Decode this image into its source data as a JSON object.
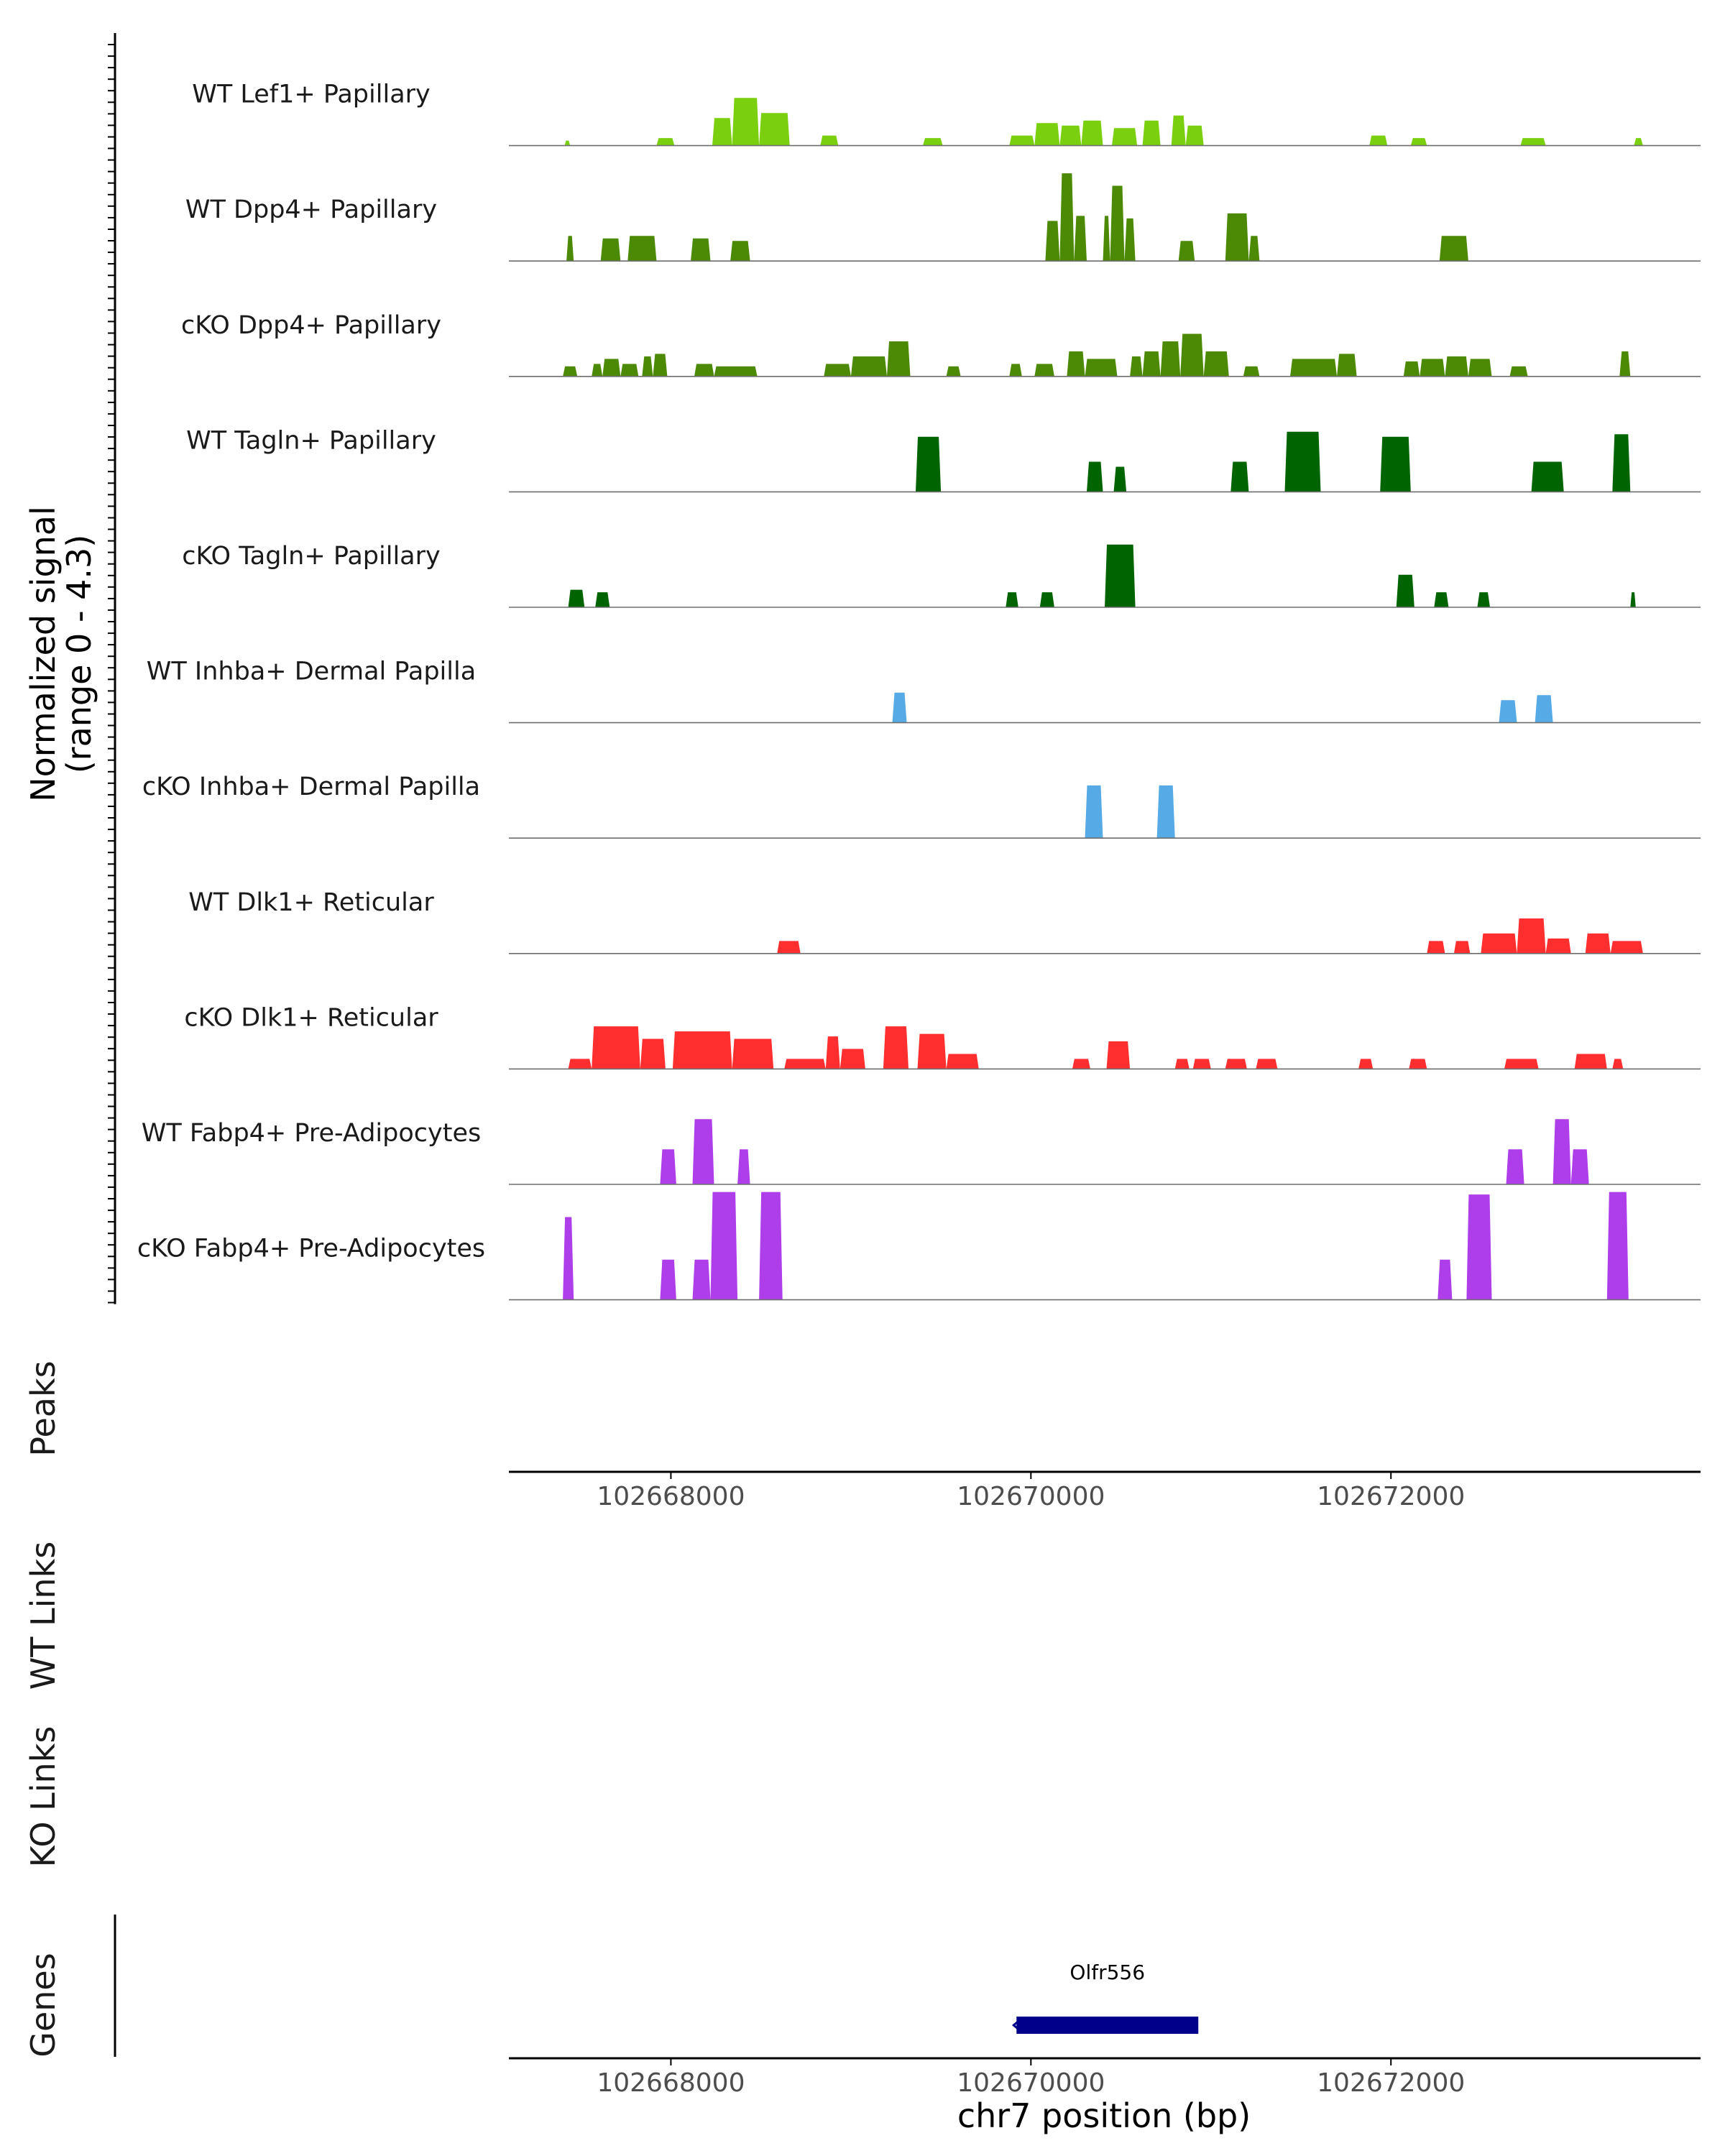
{
  "chart_data": {
    "type": "area",
    "chromosome": "chr7",
    "region": [
      102667100,
      102673720
    ],
    "ylabel": "Normalized signal",
    "ylabel_range": "(range 0 - 4.3)",
    "ylim": [
      0,
      4.3
    ],
    "xlabel": "chr7 position (bp)",
    "xticks": [
      102668000,
      102670000,
      102672000
    ],
    "tracks": [
      {
        "name": "WT Lef1+ Papillary",
        "color": "#7ACF0F",
        "segments": [
          [
            102667410,
            102667440,
            0.2
          ],
          [
            102667920,
            102668020,
            0.3
          ],
          [
            102668230,
            102668340,
            1.1
          ],
          [
            102668340,
            102668490,
            1.9
          ],
          [
            102668490,
            102668660,
            1.3
          ],
          [
            102668830,
            102668930,
            0.4
          ],
          [
            102669400,
            102669510,
            0.3
          ],
          [
            102669880,
            102670020,
            0.4
          ],
          [
            102670020,
            102670160,
            0.9
          ],
          [
            102670160,
            102670280,
            0.8
          ],
          [
            102670280,
            102670400,
            1.0
          ],
          [
            102670450,
            102670590,
            0.7
          ],
          [
            102670620,
            102670720,
            1.0
          ],
          [
            102670780,
            102670860,
            1.2
          ],
          [
            102670860,
            102670960,
            0.8
          ],
          [
            102671880,
            102671980,
            0.4
          ],
          [
            102672110,
            102672200,
            0.3
          ],
          [
            102672720,
            102672860,
            0.3
          ],
          [
            102673350,
            102673400,
            0.3
          ]
        ]
      },
      {
        "name": "WT Dpp4+ Papillary",
        "color": "#4C8A05",
        "segments": [
          [
            102667420,
            102667460,
            1.0
          ],
          [
            102667610,
            102667720,
            0.9
          ],
          [
            102667760,
            102667920,
            1.0
          ],
          [
            102668110,
            102668220,
            0.9
          ],
          [
            102668330,
            102668440,
            0.8
          ],
          [
            102670080,
            102670160,
            1.6
          ],
          [
            102670160,
            102670240,
            3.5
          ],
          [
            102670240,
            102670310,
            1.8
          ],
          [
            102670400,
            102670440,
            1.8
          ],
          [
            102670440,
            102670520,
            3.0
          ],
          [
            102670520,
            102670580,
            1.7
          ],
          [
            102670820,
            102670910,
            0.8
          ],
          [
            102671080,
            102671210,
            1.9
          ],
          [
            102671210,
            102671270,
            1.0
          ],
          [
            102672270,
            102672430,
            1.0
          ]
        ]
      },
      {
        "name": "cKO Dpp4+ Papillary",
        "color": "#4C8A05",
        "segments": [
          [
            102667400,
            102667480,
            0.4
          ],
          [
            102667560,
            102667620,
            0.5
          ],
          [
            102667620,
            102667720,
            0.7
          ],
          [
            102667720,
            102667820,
            0.5
          ],
          [
            102667840,
            102667900,
            0.8
          ],
          [
            102667900,
            102667980,
            0.9
          ],
          [
            102668130,
            102668240,
            0.5
          ],
          [
            102668240,
            102668480,
            0.4
          ],
          [
            102668850,
            102669000,
            0.5
          ],
          [
            102669000,
            102669200,
            0.8
          ],
          [
            102669200,
            102669330,
            1.4
          ],
          [
            102669530,
            102669610,
            0.4
          ],
          [
            102669880,
            102669950,
            0.5
          ],
          [
            102670020,
            102670130,
            0.5
          ],
          [
            102670200,
            102670300,
            1.0
          ],
          [
            102670300,
            102670480,
            0.7
          ],
          [
            102670550,
            102670620,
            0.8
          ],
          [
            102670620,
            102670720,
            1.0
          ],
          [
            102670720,
            102670830,
            1.4
          ],
          [
            102670830,
            102670960,
            1.7
          ],
          [
            102670960,
            102671100,
            1.0
          ],
          [
            102671180,
            102671270,
            0.4
          ],
          [
            102671440,
            102671700,
            0.7
          ],
          [
            102671700,
            102671810,
            0.9
          ],
          [
            102672070,
            102672160,
            0.6
          ],
          [
            102672160,
            102672300,
            0.7
          ],
          [
            102672300,
            102672430,
            0.8
          ],
          [
            102672430,
            102672560,
            0.7
          ],
          [
            102672660,
            102672760,
            0.4
          ],
          [
            102673270,
            102673330,
            1.0
          ]
        ]
      },
      {
        "name": "WT Tagln+ Papillary",
        "color": "#006400",
        "segments": [
          [
            102669360,
            102669500,
            2.2
          ],
          [
            102670310,
            102670400,
            1.2
          ],
          [
            102670460,
            102670530,
            1.0
          ],
          [
            102671110,
            102671210,
            1.2
          ],
          [
            102671410,
            102671610,
            2.4
          ],
          [
            102671940,
            102672110,
            2.2
          ],
          [
            102672780,
            102672960,
            1.2
          ],
          [
            102673230,
            102673330,
            2.3
          ]
        ]
      },
      {
        "name": "cKO Tagln+ Papillary",
        "color": "#006400",
        "segments": [
          [
            102667430,
            102667520,
            0.7
          ],
          [
            102667580,
            102667660,
            0.6
          ],
          [
            102669860,
            102669930,
            0.6
          ],
          [
            102670050,
            102670130,
            0.6
          ],
          [
            102670410,
            102670580,
            2.5
          ],
          [
            102672030,
            102672130,
            1.3
          ],
          [
            102672240,
            102672320,
            0.6
          ],
          [
            102672480,
            102672550,
            0.6
          ],
          [
            102673330,
            102673360,
            0.6
          ]
        ]
      },
      {
        "name": "WT Inhba+ Dermal Papilla",
        "color": "#56ABE6",
        "segments": [
          [
            102669230,
            102669310,
            1.2
          ],
          [
            102672600,
            102672700,
            0.9
          ],
          [
            102672800,
            102672900,
            1.1
          ]
        ]
      },
      {
        "name": "cKO Inhba+ Dermal Papilla",
        "color": "#56ABE6",
        "segments": [
          [
            102670300,
            102670400,
            2.1
          ],
          [
            102670700,
            102670800,
            2.1
          ]
        ]
      },
      {
        "name": "WT Dlk1+ Reticular",
        "color": "#FF2F2F",
        "segments": [
          [
            102668590,
            102668720,
            0.5
          ],
          [
            102672200,
            102672300,
            0.5
          ],
          [
            102672350,
            102672440,
            0.5
          ],
          [
            102672500,
            102672700,
            0.8
          ],
          [
            102672700,
            102672860,
            1.4
          ],
          [
            102672860,
            102673000,
            0.6
          ],
          [
            102673080,
            102673220,
            0.8
          ],
          [
            102673220,
            102673400,
            0.5
          ]
        ]
      },
      {
        "name": "cKO Dlk1+ Reticular",
        "color": "#FF2F2F",
        "segments": [
          [
            102667430,
            102667560,
            0.4
          ],
          [
            102667560,
            102667830,
            1.7
          ],
          [
            102667830,
            102667970,
            1.2
          ],
          [
            102668010,
            102668340,
            1.5
          ],
          [
            102668340,
            102668570,
            1.2
          ],
          [
            102668630,
            102668860,
            0.4
          ],
          [
            102668860,
            102668940,
            1.3
          ],
          [
            102668940,
            102669080,
            0.8
          ],
          [
            102669180,
            102669320,
            1.7
          ],
          [
            102669370,
            102669530,
            1.4
          ],
          [
            102669530,
            102669710,
            0.6
          ],
          [
            102670230,
            102670330,
            0.4
          ],
          [
            102670420,
            102670550,
            1.1
          ],
          [
            102670800,
            102670880,
            0.4
          ],
          [
            102670900,
            102671000,
            0.4
          ],
          [
            102671080,
            102671200,
            0.4
          ],
          [
            102671250,
            102671370,
            0.4
          ],
          [
            102671820,
            102671900,
            0.4
          ],
          [
            102672100,
            102672200,
            0.4
          ],
          [
            102672630,
            102672820,
            0.4
          ],
          [
            102673020,
            102673200,
            0.6
          ],
          [
            102673230,
            102673290,
            0.4
          ]
        ]
      },
      {
        "name": "WT Fabp4+ Pre-Adipocytes",
        "color": "#AE3EEA",
        "segments": [
          [
            102667940,
            102668030,
            1.4
          ],
          [
            102668120,
            102668240,
            2.6
          ],
          [
            102668370,
            102668440,
            1.4
          ],
          [
            102672640,
            102672740,
            1.4
          ],
          [
            102672900,
            102673000,
            2.6
          ],
          [
            102673000,
            102673100,
            1.4
          ]
        ]
      },
      {
        "name": "cKO Fabp4+ Pre-Adipocytes",
        "color": "#AE3EEA",
        "segments": [
          [
            102667400,
            102667460,
            3.3
          ],
          [
            102667940,
            102668030,
            1.6
          ],
          [
            102668120,
            102668220,
            1.6
          ],
          [
            102668220,
            102668370,
            4.3
          ],
          [
            102668490,
            102668620,
            4.3
          ],
          [
            102672260,
            102672340,
            1.6
          ],
          [
            102672420,
            102672560,
            4.2
          ],
          [
            102673200,
            102673320,
            4.3
          ]
        ]
      }
    ],
    "panels": {
      "peaks": "Peaks",
      "wt_links": "WT Links",
      "ko_links": "KO Links",
      "genes": "Genes"
    },
    "genes": [
      {
        "name": "Olfr556",
        "start": 102669920,
        "end": 102670930,
        "strand": "-"
      }
    ]
  }
}
